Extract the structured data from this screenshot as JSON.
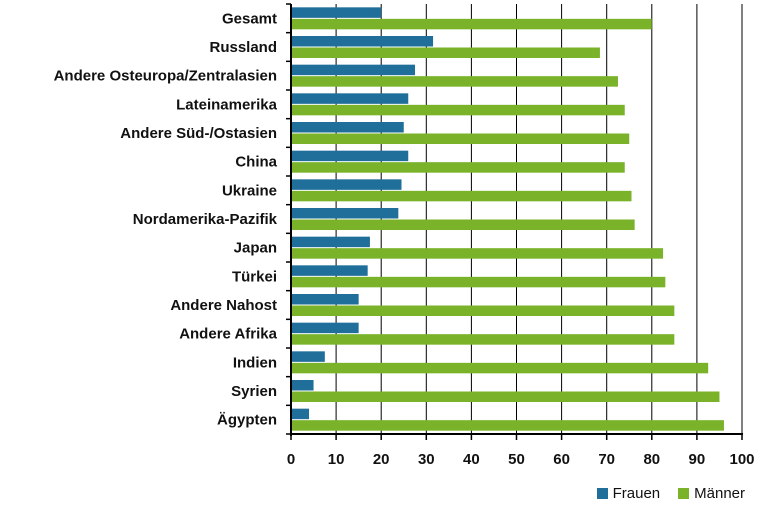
{
  "chart_data": {
    "type": "bar",
    "orientation": "horizontal",
    "categories": [
      "Gesamt",
      "Russland",
      "Andere Osteuropa/Zentralasien",
      "Lateinamerika",
      "Andere Süd-/Ostasien",
      "China",
      "Ukraine",
      "Nordamerika-Pazifik",
      "Japan",
      "Türkei",
      "Andere Nahost",
      "Andere Afrika",
      "Indien",
      "Syrien",
      "Ägypten"
    ],
    "series": [
      {
        "name": "Frauen",
        "color": "#1f6f9a",
        "values": [
          20,
          31.5,
          27.5,
          26,
          25,
          26,
          24.5,
          23.8,
          17.5,
          17,
          15,
          15,
          7.5,
          5,
          4
        ]
      },
      {
        "name": "Männer",
        "color": "#7ab32a",
        "values": [
          80,
          68.5,
          72.5,
          74,
          75,
          74,
          75.5,
          76.2,
          82.5,
          83,
          85,
          85,
          92.5,
          95,
          96
        ]
      }
    ],
    "xlim": [
      0,
      100
    ],
    "xticks": [
      "0",
      "10",
      "20",
      "30",
      "40",
      "50",
      "60",
      "70",
      "80",
      "90",
      "100"
    ],
    "grid": true,
    "legend_position": "bottom-right"
  }
}
